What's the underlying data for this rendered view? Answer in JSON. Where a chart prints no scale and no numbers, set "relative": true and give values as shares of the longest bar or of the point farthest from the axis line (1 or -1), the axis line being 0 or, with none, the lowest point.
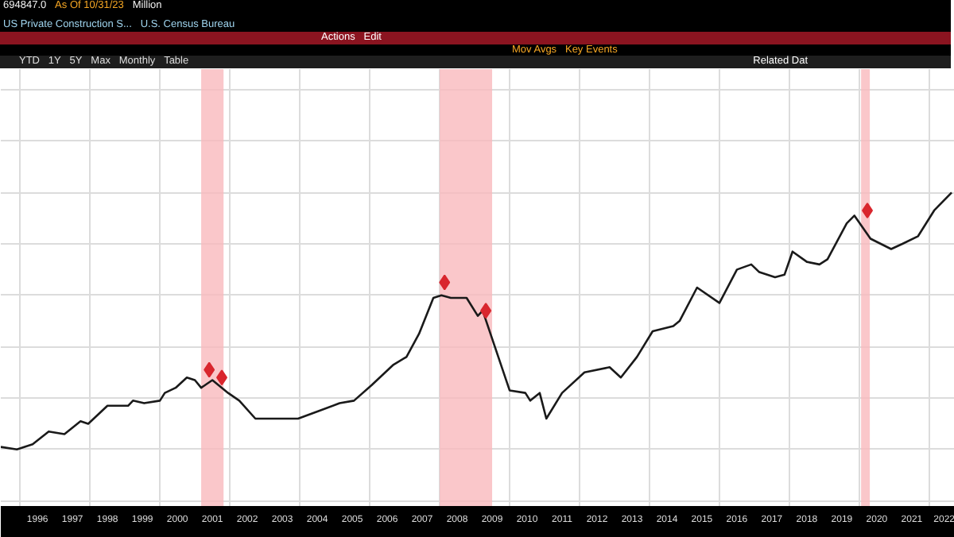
{
  "chart_data": {
    "type": "line",
    "title": "US Private Construction S...",
    "relative": true,
    "annotations": [
      "694847.0",
      "As Of 10/31/23",
      "Million",
      "U.S. Census Bureau",
      "Actions",
      "Edit",
      "Mov Avgs",
      "Key Events",
      "YTD",
      "1Y",
      "5Y",
      "Max",
      "Monthly",
      "Table",
      "Related Dat"
    ],
    "xlim": [
      1995.45,
      2022.73
    ],
    "xticks": [
      {
        "value": 1996,
        "label": null
      },
      {
        "value": 1998,
        "label": null
      },
      {
        "value": 2000,
        "label": null
      },
      {
        "value": 2002,
        "label": null
      },
      {
        "value": 2004,
        "label": null
      },
      {
        "value": 2006,
        "label": null
      },
      {
        "value": 2008,
        "label": null
      },
      {
        "value": 2010,
        "label": null
      },
      {
        "value": 2012,
        "label": null
      },
      {
        "value": 2014,
        "label": null
      },
      {
        "value": 2016,
        "label": null
      },
      {
        "value": 2018,
        "label": null
      },
      {
        "value": 2020,
        "label": null
      },
      {
        "value": 2022,
        "label": null
      },
      {
        "value": 1996.5,
        "label": "1996"
      },
      {
        "value": 1997.5,
        "label": "1997"
      },
      {
        "value": 1998.5,
        "label": "1998"
      },
      {
        "value": 1999.5,
        "label": "1999"
      },
      {
        "value": 2000.5,
        "label": "2000"
      },
      {
        "value": 2001.5,
        "label": "2001"
      },
      {
        "value": 2002.5,
        "label": "2002"
      },
      {
        "value": 2003.5,
        "label": "2003"
      },
      {
        "value": 2004.5,
        "label": "2004"
      },
      {
        "value": 2005.5,
        "label": "2005"
      },
      {
        "value": 2006.5,
        "label": "2006"
      },
      {
        "value": 2007.5,
        "label": "2007"
      },
      {
        "value": 2008.5,
        "label": "2008"
      },
      {
        "value": 2009.5,
        "label": "2009"
      },
      {
        "value": 2010.5,
        "label": "2010"
      },
      {
        "value": 2011.5,
        "label": "2011"
      },
      {
        "value": 2012.5,
        "label": "2012"
      },
      {
        "value": 2013.5,
        "label": "2013"
      },
      {
        "value": 2014.5,
        "label": "2014"
      },
      {
        "value": 2015.5,
        "label": "2015"
      },
      {
        "value": 2016.5,
        "label": "2016"
      },
      {
        "value": 2017.5,
        "label": "2017"
      },
      {
        "value": 2018.5,
        "label": "2018"
      },
      {
        "value": 2019.5,
        "label": "2019"
      },
      {
        "value": 2020.5,
        "label": "2020"
      },
      {
        "value": 2021.5,
        "label": "2021"
      },
      {
        "value": 2022.5,
        "label": "2022"
      }
    ],
    "grid": true,
    "bands": [
      {
        "axis": "x",
        "from": 2001.18,
        "to": 2001.82,
        "color": "#f9b9bd"
      },
      {
        "axis": "x",
        "from": 2008.0,
        "to": 2009.5,
        "color": "#f9b9bd"
      },
      {
        "axis": "x",
        "from": 2020.05,
        "to": 2020.3,
        "color": "#f9b9bd"
      }
    ],
    "series": [
      {
        "color": "#1a1a1a",
        "x": [
          1995.45,
          1995.91,
          1996.36,
          1996.82,
          1997.27,
          1997.73,
          1997.95,
          1998.5,
          1999.09,
          1999.23,
          1999.55,
          2000.0,
          2000.14,
          2000.45,
          2000.77,
          2001.0,
          2001.18,
          2001.5,
          2001.95,
          2002.27,
          2002.73,
          2003.32,
          2003.95,
          2004.55,
          2005.14,
          2005.55,
          2006.05,
          2006.68,
          2007.05,
          2007.41,
          2007.82,
          2008.05,
          2008.32,
          2008.77,
          2009.09,
          2009.23,
          2010.0,
          2010.45,
          2010.59,
          2010.86,
          2011.05,
          2011.5,
          2012.14,
          2012.86,
          2013.18,
          2013.64,
          2014.09,
          2014.68,
          2014.86,
          2015.36,
          2016.0,
          2016.5,
          2016.91,
          2017.14,
          2017.59,
          2017.86,
          2018.09,
          2018.5,
          2018.86,
          2019.09,
          2019.64,
          2019.86,
          2020.32,
          2020.91,
          2021.23,
          2021.68,
          2022.14,
          2022.64
        ],
        "values": [
          0.01,
          0,
          0.02,
          0.07,
          0.06,
          0.11,
          0.1,
          0.17,
          0.17,
          0.19,
          0.18,
          0.19,
          0.22,
          0.24,
          0.28,
          0.27,
          0.24,
          0.27,
          0.22,
          0.19,
          0.12,
          0.12,
          0.12,
          0.15,
          0.18,
          0.19,
          0.25,
          0.33,
          0.36,
          0.45,
          0.59,
          0.6,
          0.59,
          0.59,
          0.52,
          0.54,
          0.23,
          0.22,
          0.19,
          0.22,
          0.12,
          0.22,
          0.3,
          0.32,
          0.28,
          0.36,
          0.46,
          0.48,
          0.5,
          0.63,
          0.57,
          0.7,
          0.72,
          0.69,
          0.67,
          0.68,
          0.77,
          0.73,
          0.72,
          0.74,
          0.88,
          0.91,
          0.82,
          0.78,
          0.8,
          0.83,
          0.93,
          1
        ]
      },
      {
        "type": "scatter",
        "marker": "diamond",
        "color": "#d9262e",
        "x": [
          2001.41,
          2001.77,
          2008.14,
          2009.32,
          2020.23
        ],
        "values": [
          0.31,
          0.28,
          0.65,
          0.54,
          0.93
        ]
      }
    ]
  }
}
